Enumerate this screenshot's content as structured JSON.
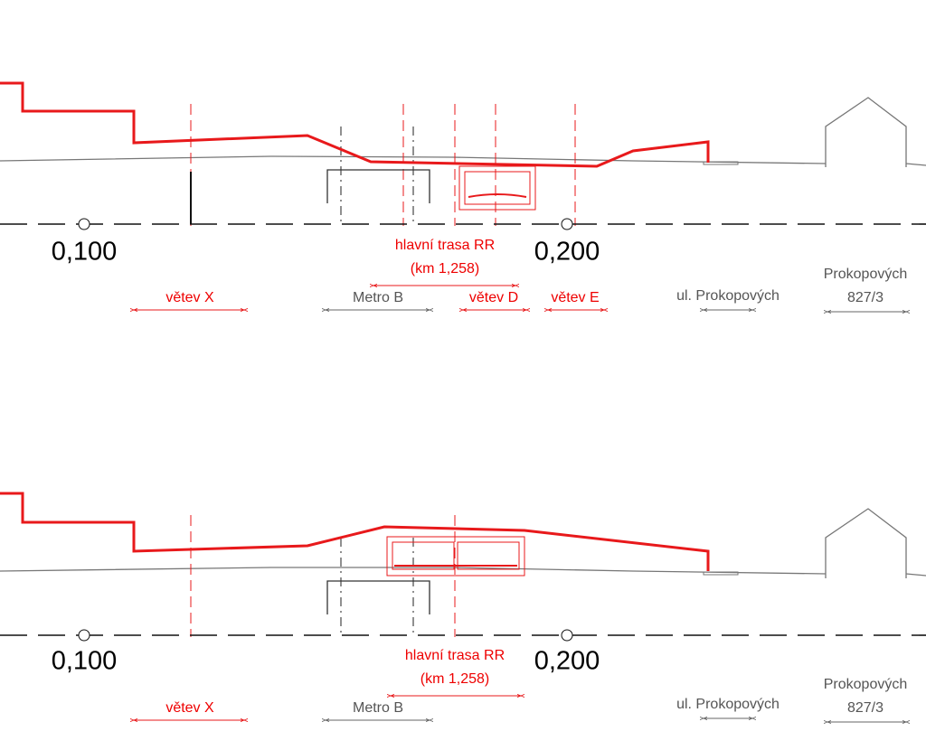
{
  "panels": [
    {
      "stations": [
        "0,100",
        "0,200"
      ],
      "main_route": {
        "name": "hlavní trasa RR",
        "km": "(km 1,258)"
      },
      "segments": [
        "větev X",
        "Metro B",
        "větev D",
        "větev E"
      ],
      "street": "ul. Prokopových",
      "building": {
        "name": "Prokopových",
        "number": "827/3"
      }
    },
    {
      "stations": [
        "0,100",
        "0,200"
      ],
      "main_route": {
        "name": "hlavní trasa RR",
        "km": "(km 1,258)"
      },
      "segments": [
        "větev X",
        "Metro B"
      ],
      "street": "ul. Prokopových",
      "building": {
        "name": "Prokopových",
        "number": "827/3"
      }
    }
  ]
}
